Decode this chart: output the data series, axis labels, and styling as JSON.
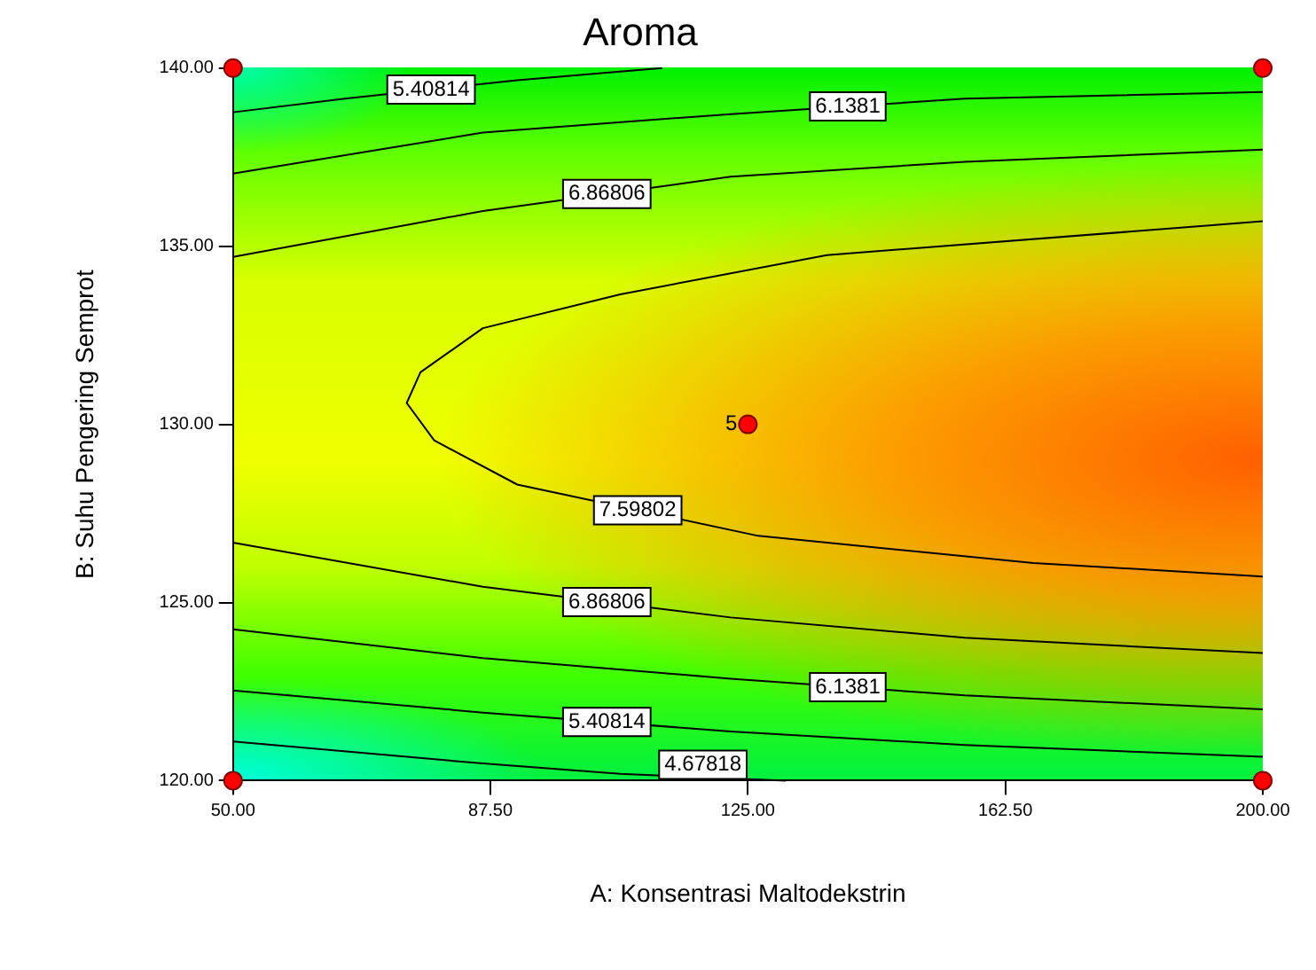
{
  "chart_data": {
    "type": "line",
    "title": "Aroma",
    "xlabel": "A: Konsentrasi Maltodekstrin",
    "ylabel": "B: Suhu Pengering Semprot",
    "xlim": [
      50,
      200
    ],
    "ylim": [
      120,
      140
    ],
    "xticks": [
      {
        "value": 50,
        "label": "50.00"
      },
      {
        "value": 87.5,
        "label": "87.50"
      },
      {
        "value": 125,
        "label": "125.00"
      },
      {
        "value": 162.5,
        "label": "162.50"
      },
      {
        "value": 200,
        "label": "200.00"
      }
    ],
    "yticks": [
      {
        "value": 120,
        "label": "120.00"
      },
      {
        "value": 125,
        "label": "125.00"
      },
      {
        "value": 130,
        "label": "130.00"
      },
      {
        "value": 135,
        "label": "135.00"
      },
      {
        "value": 140,
        "label": "140.00"
      }
    ],
    "grid": false,
    "legend": false,
    "marker": "none",
    "line_style": "solid",
    "series": [
      {
        "name": "5.40814",
        "color": "#000000",
        "x": [
          50,
          66.3,
          91.4,
          112.5
        ],
        "values": [
          138.76,
          139.14,
          139.66,
          140
        ]
      },
      {
        "name": "6.1381",
        "color": "#000000",
        "x": [
          50,
          86.4,
          122.5,
          156.6,
          200
        ],
        "values": [
          137.04,
          138.19,
          138.71,
          139.14,
          139.33
        ]
      },
      {
        "name": "6.86806",
        "color": "#000000",
        "x": [
          50,
          86.4,
          122.5,
          156.6,
          200
        ],
        "values": [
          134.7,
          135.99,
          136.95,
          137.37,
          137.71
        ]
      },
      {
        "name": "7.59802",
        "color": "#000000",
        "x": [
          200,
          136.5,
          106.4,
          86.4,
          77.3,
          75.3,
          79.3,
          91.4,
          126.5,
          166.6,
          200
        ],
        "values": [
          135.7,
          134.75,
          133.65,
          132.7,
          131.46,
          130.6,
          129.55,
          128.31,
          126.87,
          126.11,
          125.73
        ]
      },
      {
        "name": "6.86806",
        "color": "#000000",
        "x": [
          50,
          86.4,
          122.5,
          156.6,
          200
        ],
        "values": [
          126.68,
          125.44,
          124.58,
          124.01,
          123.58
        ]
      },
      {
        "name": "6.1381",
        "color": "#000000",
        "x": [
          50,
          86.4,
          122.5,
          156.6,
          200
        ],
        "values": [
          124.25,
          123.44,
          122.86,
          122.39,
          122.0
        ]
      },
      {
        "name": "5.40814",
        "color": "#000000",
        "x": [
          50,
          86.4,
          122.5,
          156.6,
          200
        ],
        "values": [
          122.53,
          121.91,
          121.38,
          121.0,
          120.67
        ]
      },
      {
        "name": "4.67818",
        "color": "#000000",
        "x": [
          50,
          86.4,
          106.4,
          130.5
        ],
        "values": [
          121.1,
          120.48,
          120.19,
          120
        ]
      },
      {
        "type": "scatter",
        "color": "#ff0000",
        "marker": "circle",
        "x": [
          50,
          50,
          200,
          200,
          125
        ],
        "values": [
          120,
          140,
          120,
          140,
          130
        ]
      }
    ],
    "annotations": [
      {
        "text": "5",
        "x": 125,
        "y": 130
      }
    ]
  }
}
